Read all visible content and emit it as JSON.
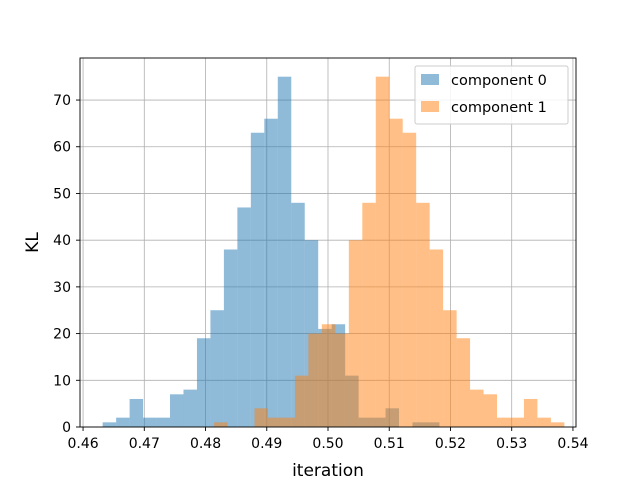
{
  "chart_data": {
    "type": "histogram",
    "xlabel": "iteration",
    "ylabel": "KL",
    "xlim": [
      0.4595,
      0.5405
    ],
    "ylim": [
      0,
      79
    ],
    "xticks": [
      "0.46",
      "0.47",
      "0.48",
      "0.49",
      "0.50",
      "0.51",
      "0.52",
      "0.53",
      "0.54"
    ],
    "xtick_values": [
      0.46,
      0.47,
      0.48,
      0.49,
      0.5,
      0.51,
      0.52,
      0.53,
      0.54
    ],
    "yticks": [
      "0",
      "10",
      "20",
      "30",
      "40",
      "50",
      "60",
      "70"
    ],
    "ytick_values": [
      0,
      10,
      20,
      30,
      40,
      50,
      60,
      70
    ],
    "grid": true,
    "legend_position": "top-right",
    "series": [
      {
        "name": "component 0",
        "color": "#1f77b4",
        "opacity": 0.5,
        "bin_start": 0.4632,
        "bin_width": 0.0022,
        "counts": [
          1,
          2,
          6,
          2,
          2,
          7,
          8,
          19,
          25,
          38,
          47,
          63,
          66,
          75,
          48,
          40,
          21,
          22,
          11,
          2,
          2,
          4,
          0,
          1,
          1
        ]
      },
      {
        "name": "component 1",
        "color": "#ff7f0e",
        "opacity": 0.5,
        "bin_start": 0.4814,
        "bin_width": 0.0022,
        "counts": [
          1,
          0,
          0,
          4,
          2,
          2,
          11,
          20,
          22,
          20,
          40,
          48,
          75,
          66,
          63,
          48,
          38,
          25,
          19,
          8,
          7,
          2,
          2,
          6,
          2,
          1
        ]
      }
    ]
  }
}
